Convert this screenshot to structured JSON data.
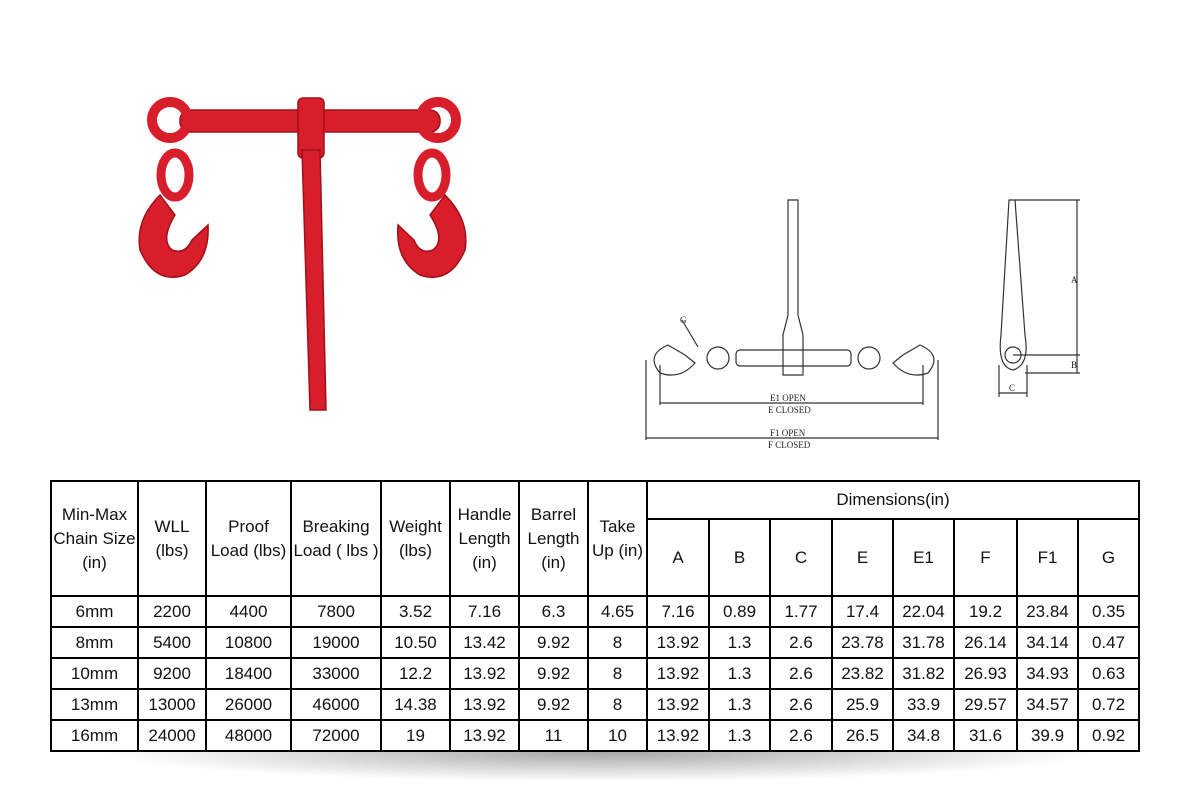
{
  "diagram": {
    "label_g": "G",
    "label_e1": "E1 OPEN",
    "label_e": "E CLOSED",
    "label_f1": "F1 OPEN",
    "label_f": "F CLOSED",
    "label_a": "A",
    "label_b": "B",
    "label_c": "C"
  },
  "colors": {
    "product_red": "#d81e2a"
  },
  "table": {
    "headers": [
      "Min-Max Chain Size (in)",
      "WLL (lbs)",
      "Proof Load (lbs)",
      "Breaking Load ( lbs )",
      "Weight (lbs)",
      "Handle Length (in)",
      "Barrel Length (in)",
      "Take Up (in)"
    ],
    "dimensions_header": "Dimensions(in)",
    "dim_headers": [
      "A",
      "B",
      "C",
      "E",
      "E1",
      "F",
      "F1",
      "G"
    ],
    "rows": [
      [
        "6mm",
        "2200",
        "4400",
        "7800",
        "3.52",
        "7.16",
        "6.3",
        "4.65",
        "7.16",
        "0.89",
        "1.77",
        "17.4",
        "22.04",
        "19.2",
        "23.84",
        "0.35"
      ],
      [
        "8mm",
        "5400",
        "10800",
        "19000",
        "10.50",
        "13.42",
        "9.92",
        "8",
        "13.92",
        "1.3",
        "2.6",
        "23.78",
        "31.78",
        "26.14",
        "34.14",
        "0.47"
      ],
      [
        "10mm",
        "9200",
        "18400",
        "33000",
        "12.2",
        "13.92",
        "9.92",
        "8",
        "13.92",
        "1.3",
        "2.6",
        "23.82",
        "31.82",
        "26.93",
        "34.93",
        "0.63"
      ],
      [
        "13mm",
        "13000",
        "26000",
        "46000",
        "14.38",
        "13.92",
        "9.92",
        "8",
        "13.92",
        "1.3",
        "2.6",
        "25.9",
        "33.9",
        "29.57",
        "34.57",
        "0.72"
      ],
      [
        "16mm",
        "24000",
        "48000",
        "72000",
        "19",
        "13.92",
        "11",
        "10",
        "13.92",
        "1.3",
        "2.6",
        "26.5",
        "34.8",
        "31.6",
        "39.9",
        "0.92"
      ]
    ]
  }
}
